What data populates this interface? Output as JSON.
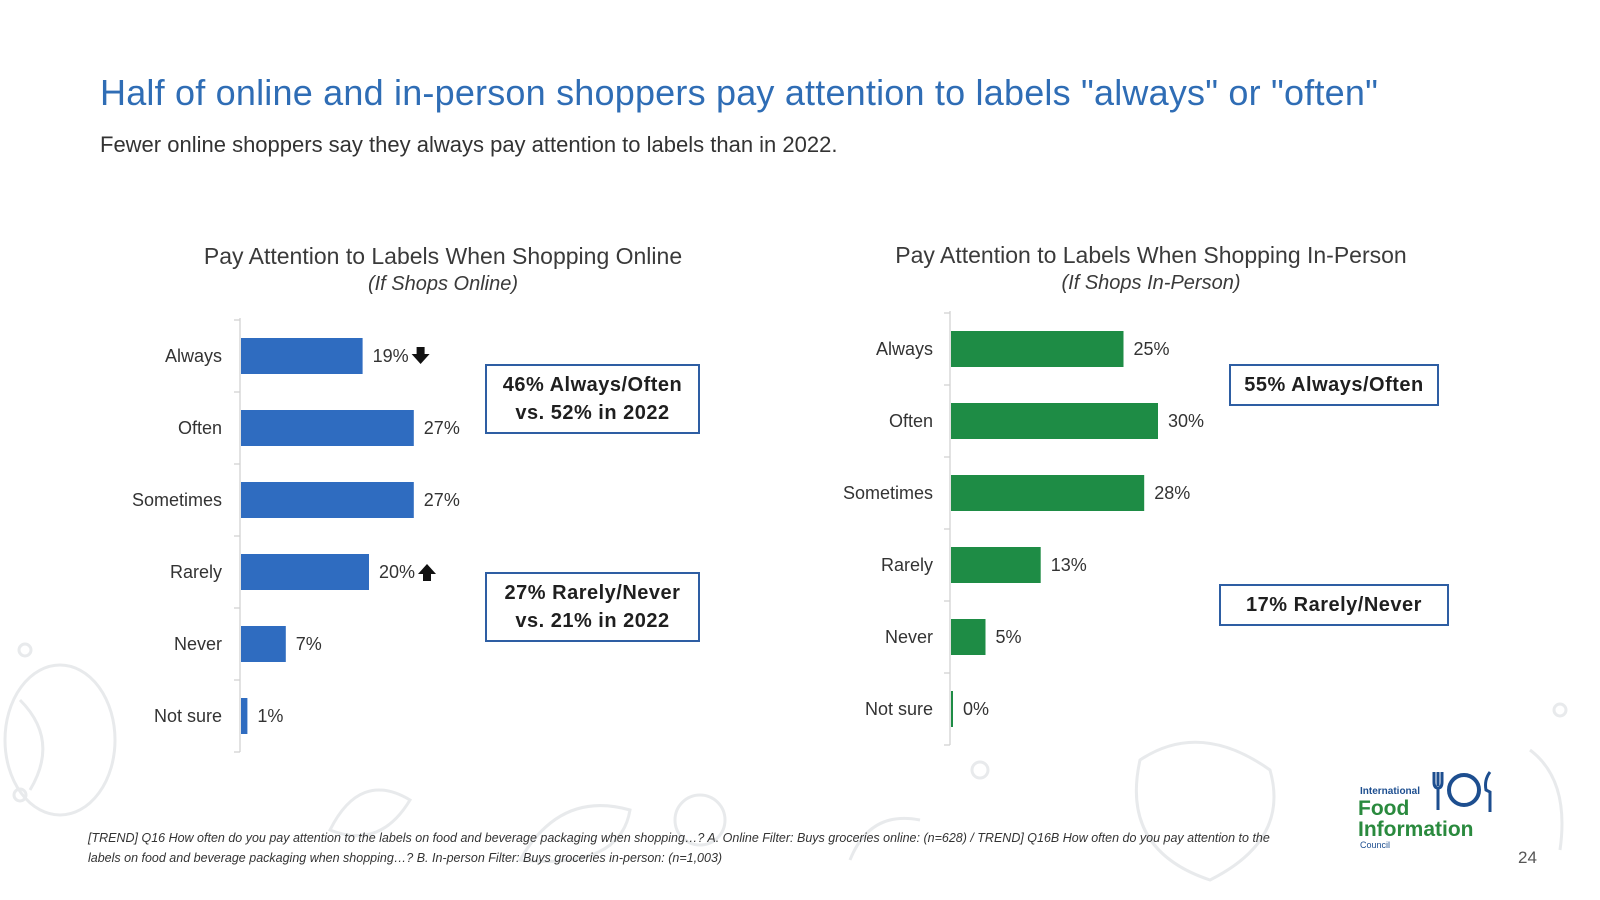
{
  "header": {
    "title": "Half of online and in-person shoppers pay attention to labels \"always\" or \"often\"",
    "subtitle": "Fewer online shoppers say they always pay attention to labels than in 2022."
  },
  "chart_data": [
    {
      "type": "bar",
      "orientation": "horizontal",
      "title": "Pay Attention to Labels When Shopping Online",
      "subtitle": "(If Shops Online)",
      "categories": [
        "Always",
        "Often",
        "Sometimes",
        "Rarely",
        "Never",
        "Not sure"
      ],
      "values": [
        19,
        27,
        27,
        20,
        7,
        1
      ],
      "data_labels": [
        "19%",
        "27%",
        "27%",
        "20%",
        "7%",
        "1%"
      ],
      "trend_markers": [
        "down",
        "",
        "",
        "up",
        "",
        ""
      ],
      "color": "#2f6cc0",
      "xlim": [
        0,
        100
      ]
    },
    {
      "type": "bar",
      "orientation": "horizontal",
      "title": "Pay Attention to Labels When Shopping In-Person",
      "subtitle": "(If Shops In-Person)",
      "categories": [
        "Always",
        "Often",
        "Sometimes",
        "Rarely",
        "Never",
        "Not sure"
      ],
      "values": [
        25,
        30,
        28,
        13,
        5,
        0
      ],
      "data_labels": [
        "25%",
        "30%",
        "28%",
        "13%",
        "5%",
        "0%"
      ],
      "trend_markers": [
        "",
        "",
        "",
        "",
        "",
        ""
      ],
      "color": "#1e8c45",
      "xlim": [
        0,
        100
      ]
    }
  ],
  "callouts": {
    "online_top": [
      "46% Always/Often",
      "vs. 52% in 2022"
    ],
    "online_bottom": [
      "27% Rarely/Never",
      "vs. 21% in 2022"
    ],
    "inperson_top": "55% Always/Often",
    "inperson_bottom": "17% Rarely/Never"
  },
  "footnote": "[TREND] Q16 How often do you pay attention to the labels on food and beverage packaging when shopping…? A. Online Filter: Buys groceries online: (n=628) / TREND] Q16B How often do you pay attention to the labels on food and beverage packaging when shopping…? B. In-person Filter: Buys groceries in-person: (n=1,003)",
  "logo": {
    "line1": "International",
    "line2": "Food",
    "line3": "Information",
    "line4": "Council"
  },
  "page_number": "24",
  "colors": {
    "title": "#2f6db5",
    "online": "#2f6cc0",
    "inperson": "#1e8c45",
    "callout_border": "#2e5ea3"
  }
}
